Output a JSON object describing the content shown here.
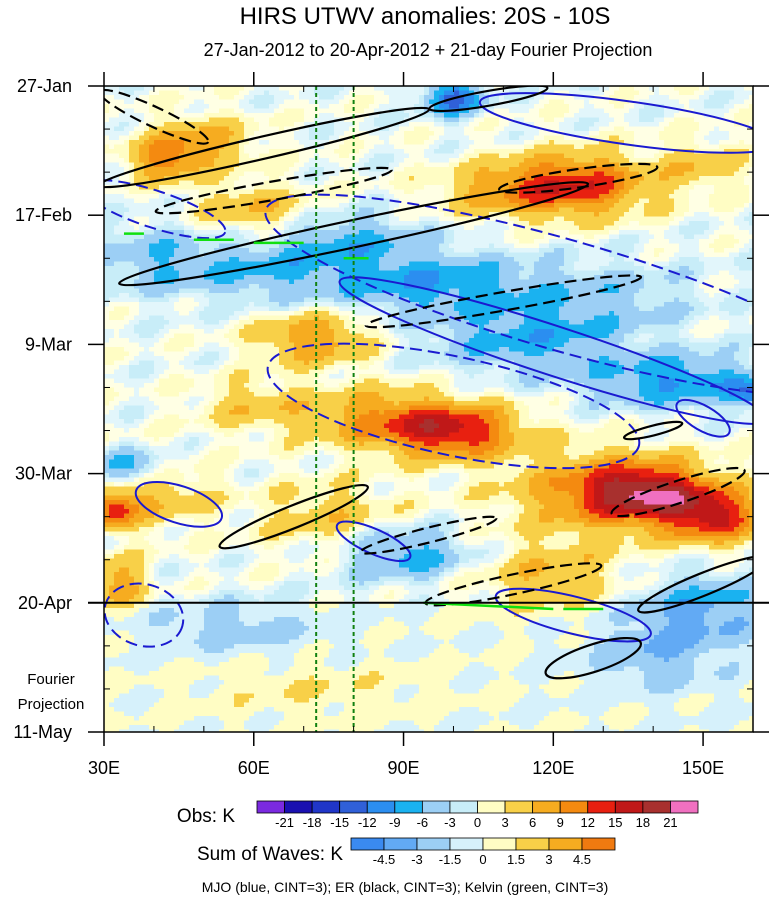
{
  "chart_data": {
    "type": "heatmap",
    "title": "HIRS UTWV anomalies: 20S - 10S",
    "subtitle": "27-Jan-2012 to 20-Apr-2012 + 21-day Fourier Projection",
    "xlabel": "",
    "ylabel": "",
    "x_ticks": [
      {
        "value": 30,
        "label": "30E"
      },
      {
        "value": 60,
        "label": "60E"
      },
      {
        "value": 90,
        "label": "90E"
      },
      {
        "value": 120,
        "label": "120E"
      },
      {
        "value": 150,
        "label": "150E"
      }
    ],
    "xlim": [
      30,
      160
    ],
    "y_ticks": [
      {
        "value": 0,
        "label": "27-Jan"
      },
      {
        "value": 21,
        "label": "17-Feb"
      },
      {
        "value": 42,
        "label": "9-Mar"
      },
      {
        "value": 63,
        "label": "30-Mar"
      },
      {
        "value": 84,
        "label": "20-Apr"
      },
      {
        "value": 105,
        "label": "11-May"
      }
    ],
    "ylim_days": [
      0,
      105
    ],
    "projection_start_day": 84,
    "projection_label": [
      "Fourier",
      "Projection"
    ],
    "reference_longitudes": [
      72.5,
      80
    ],
    "obs_legend": {
      "title": "Obs: K",
      "labels": [
        "-21",
        "-18",
        "-15",
        "-12",
        "-9",
        "-6",
        "-3",
        "0",
        "3",
        "6",
        "9",
        "12",
        "15",
        "18",
        "21"
      ],
      "colors": [
        "#7b2ae0",
        "#1a10b0",
        "#2036c8",
        "#3060d8",
        "#2b8ef0",
        "#1ab2f0",
        "#9ccff5",
        "#c8edf8",
        "#fffdc4",
        "#f8d048",
        "#f6ac20",
        "#f48a10",
        "#e82010",
        "#c01818",
        "#a8302e",
        "#f070c0"
      ]
    },
    "waves_legend": {
      "title": "Sum of Waves: K",
      "labels": [
        "-4.5",
        "-3",
        "-1.5",
        "0",
        "1.5",
        "3",
        "4.5"
      ],
      "colors": [
        "#3a8af0",
        "#62aaf4",
        "#9ccff5",
        "#d6f1fb",
        "#fffdc4",
        "#f8d048",
        "#f6ac20",
        "#f07a10"
      ]
    },
    "footer": "MJO (blue, CINT=3); ER (black, CINT=3); Kelvin (green, CINT=3)",
    "series_styles": [
      {
        "name": "MJO",
        "color": "#1a1ad0"
      },
      {
        "name": "ER",
        "color": "#000000"
      },
      {
        "name": "Kelvin",
        "color": "#10e010"
      }
    ],
    "anomaly_features": [
      {
        "lon": 50,
        "day": 9,
        "value": 7,
        "sx": 7,
        "sy": 3
      },
      {
        "lon": 42,
        "day": 12,
        "value": 9,
        "sx": 5,
        "sy": 2.5
      },
      {
        "lon": 60,
        "day": 20,
        "value": 6,
        "sx": 8,
        "sy": 3
      },
      {
        "lon": 125,
        "day": 16,
        "value": 13,
        "sx": 10,
        "sy": 3.5
      },
      {
        "lon": 110,
        "day": 17,
        "value": 6,
        "sx": 10,
        "sy": 3
      },
      {
        "lon": 150,
        "day": 13,
        "value": 5,
        "sx": 6,
        "sy": 3
      },
      {
        "lon": 72,
        "day": 41,
        "value": 9,
        "sx": 8,
        "sy": 3
      },
      {
        "lon": 100,
        "day": 56,
        "value": 15,
        "sx": 9,
        "sy": 3
      },
      {
        "lon": 85,
        "day": 54,
        "value": 8,
        "sx": 10,
        "sy": 3.5
      },
      {
        "lon": 60,
        "day": 52,
        "value": 5,
        "sx": 8,
        "sy": 3
      },
      {
        "lon": 138,
        "day": 66,
        "value": 15,
        "sx": 9,
        "sy": 3
      },
      {
        "lon": 152,
        "day": 70,
        "value": 14,
        "sx": 7,
        "sy": 3
      },
      {
        "lon": 130,
        "day": 66,
        "value": 8,
        "sx": 14,
        "sy": 5
      },
      {
        "lon": 32,
        "day": 69,
        "value": 12,
        "sx": 3,
        "sy": 2
      },
      {
        "lon": 40,
        "day": 66,
        "value": 6,
        "sx": 8,
        "sy": 4
      },
      {
        "lon": 33,
        "day": 81,
        "value": 8,
        "sx": 4,
        "sy": 3
      },
      {
        "lon": 120,
        "day": 80,
        "value": 6,
        "sx": 10,
        "sy": 4
      },
      {
        "lon": 75,
        "day": 70,
        "value": 5,
        "sx": 10,
        "sy": 4
      },
      {
        "lon": 72,
        "day": 98,
        "value": 3,
        "sx": 16,
        "sy": 3
      },
      {
        "lon": 95,
        "day": 32,
        "value": -8,
        "sx": 14,
        "sy": 3.5
      },
      {
        "lon": 145,
        "day": 48,
        "value": -9,
        "sx": 12,
        "sy": 3
      },
      {
        "lon": 115,
        "day": 41,
        "value": -7,
        "sx": 14,
        "sy": 4
      },
      {
        "lon": 160,
        "day": 50,
        "value": -10,
        "sx": 3,
        "sy": 1.5
      },
      {
        "lon": 62,
        "day": 30,
        "value": -6,
        "sx": 12,
        "sy": 3.5
      },
      {
        "lon": 100,
        "day": 2,
        "value": -13,
        "sx": 4,
        "sy": 2
      },
      {
        "lon": 40,
        "day": 28,
        "value": -5,
        "sx": 8,
        "sy": 4
      },
      {
        "lon": 35,
        "day": 62,
        "value": -9,
        "sx": 6,
        "sy": 2
      },
      {
        "lon": 90,
        "day": 76,
        "value": -8,
        "sx": 9,
        "sy": 3
      },
      {
        "lon": 150,
        "day": 85,
        "value": -8,
        "sx": 10,
        "sy": 4
      },
      {
        "lon": 140,
        "day": 93,
        "value": -6,
        "sx": 10,
        "sy": 4
      },
      {
        "lon": 56,
        "day": 88,
        "value": -5,
        "sx": 14,
        "sy": 3
      },
      {
        "lon": 80,
        "day": 25,
        "value": -6,
        "sx": 10,
        "sy": 3
      },
      {
        "lon": 130,
        "day": 34,
        "value": -4,
        "sx": 14,
        "sy": 4
      }
    ],
    "er_contours": [
      {
        "cx": 62,
        "cy": 10,
        "rx": 34,
        "ry": 1.8,
        "rot": -13,
        "dashed": false
      },
      {
        "cx": 80,
        "cy": 24,
        "rx": 48,
        "ry": 2.2,
        "rot": -12,
        "dashed": false
      },
      {
        "cx": 64,
        "cy": 17,
        "rx": 24,
        "ry": 1.5,
        "rot": -10,
        "dashed": true
      },
      {
        "cx": 110,
        "cy": 35,
        "rx": 28,
        "ry": 1.5,
        "rot": -10,
        "dashed": true
      },
      {
        "cx": 125,
        "cy": 15,
        "rx": 16,
        "ry": 1.5,
        "rot": -8,
        "dashed": true
      },
      {
        "cx": 68,
        "cy": 70,
        "rx": 16,
        "ry": 1.8,
        "rot": -22,
        "dashed": false
      },
      {
        "cx": 145,
        "cy": 66,
        "rx": 14,
        "ry": 1.8,
        "rot": -18,
        "dashed": true
      },
      {
        "cx": 112,
        "cy": 81,
        "rx": 18,
        "ry": 1.6,
        "rot": -12,
        "dashed": true
      },
      {
        "cx": 95,
        "cy": 73,
        "rx": 14,
        "ry": 1.2,
        "rot": -14,
        "dashed": true
      },
      {
        "cx": 128,
        "cy": 93,
        "rx": 10,
        "ry": 2.2,
        "rot": -18,
        "dashed": false
      },
      {
        "cx": 150,
        "cy": 81,
        "rx": 14,
        "ry": 1.8,
        "rot": -22,
        "dashed": false
      },
      {
        "cx": 107,
        "cy": 2,
        "rx": 12,
        "ry": 1.2,
        "rot": -10,
        "dashed": false
      },
      {
        "cx": 40,
        "cy": 5,
        "rx": 12,
        "ry": 1.6,
        "rot": 25,
        "dashed": true
      },
      {
        "cx": 140,
        "cy": 56,
        "rx": 6,
        "ry": 0.8,
        "rot": -14,
        "dashed": false
      }
    ],
    "mjo_contours": [
      {
        "cx": 120,
        "cy": 43,
        "rx": 45,
        "ry": 4,
        "rot": 18,
        "dashed": false
      },
      {
        "cx": 122,
        "cy": 34,
        "rx": 62,
        "ry": 9,
        "rot": 16,
        "dashed": true
      },
      {
        "cx": 45,
        "cy": 68,
        "rx": 9,
        "ry": 3,
        "rot": 18,
        "dashed": false
      },
      {
        "cx": 84,
        "cy": 74,
        "rx": 8,
        "ry": 2,
        "rot": 24,
        "dashed": false
      },
      {
        "cx": 124,
        "cy": 86,
        "rx": 16,
        "ry": 3,
        "rot": 14,
        "dashed": false
      },
      {
        "cx": 38,
        "cy": 86,
        "rx": 8,
        "ry": 5,
        "rot": 16,
        "dashed": true
      },
      {
        "cx": 135,
        "cy": 6,
        "rx": 30,
        "ry": 3.5,
        "rot": 8,
        "dashed": false
      },
      {
        "cx": 40,
        "cy": 20,
        "rx": 15,
        "ry": 3,
        "rot": 18,
        "dashed": true
      },
      {
        "cx": 100,
        "cy": 52,
        "rx": 38,
        "ry": 8,
        "rot": 12,
        "dashed": true
      },
      {
        "cx": 150,
        "cy": 54,
        "rx": 6,
        "ry": 2,
        "rot": 30,
        "dashed": false
      }
    ],
    "kelvin_segments": [
      {
        "x1": 34,
        "y1": 24,
        "x2": 38,
        "y2": 24
      },
      {
        "x1": 48,
        "y1": 25,
        "x2": 56,
        "y2": 25
      },
      {
        "x1": 60,
        "y1": 25.5,
        "x2": 70,
        "y2": 25.5
      },
      {
        "x1": 78,
        "y1": 28,
        "x2": 83,
        "y2": 28
      },
      {
        "x1": 94,
        "y1": 84,
        "x2": 120,
        "y2": 85
      },
      {
        "x1": 122,
        "y1": 85,
        "x2": 130,
        "y2": 85
      }
    ]
  }
}
